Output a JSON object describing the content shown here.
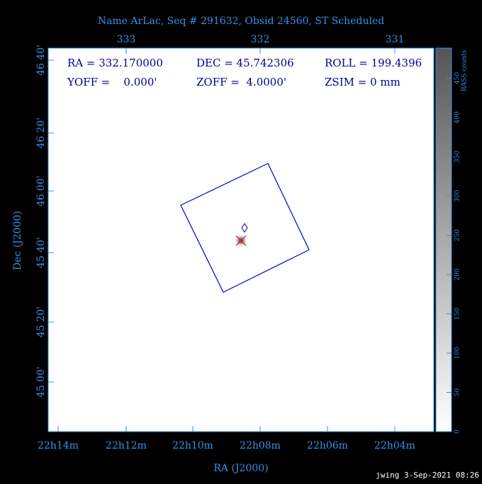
{
  "title": "Name ArLac, Seq # 291632, Obsid 24560, ST Scheduled",
  "top_axis": [
    "333",
    "332",
    "331"
  ],
  "left_axis": [
    "46 40'",
    "46 20'",
    "46 00'",
    "45 40'",
    "45 20'",
    "45 00'"
  ],
  "left_axis_title": "Dec (J2000)",
  "bottom_axis": [
    "22h14m",
    "22h12m",
    "22h10m",
    "22h08m",
    "22h06m",
    "22h04m"
  ],
  "bottom_axis_title": "RA (J2000)",
  "colorbar": {
    "label": "RASS counts",
    "ticks": [
      "0",
      "50",
      "100",
      "150",
      "200",
      "250",
      "300",
      "350",
      "400",
      "450"
    ]
  },
  "info": [
    [
      "RA = 332.170000",
      "DEC = 45.742306",
      "ROLL = 199.4396"
    ],
    [
      "YOFF =    0.000'",
      "ZOFF =  4.0000'",
      "ZSIM = 0 mm"
    ]
  ],
  "footer": "jwing  3-Sep-2021 08:26"
}
